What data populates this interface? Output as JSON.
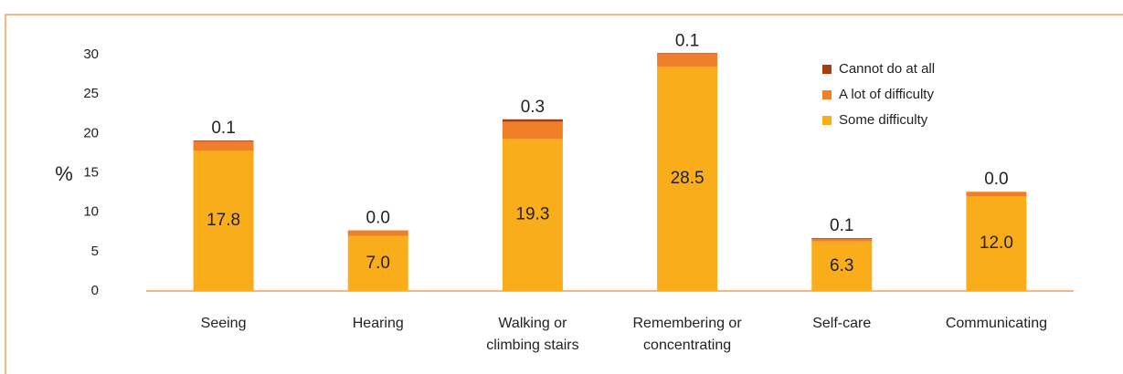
{
  "chart_data": {
    "type": "stacked_bar",
    "y_label": "%",
    "categories": [
      [
        "Seeing"
      ],
      [
        "Hearing"
      ],
      [
        "Walking or",
        "climbing stairs"
      ],
      [
        "Remembering or",
        "concentrating"
      ],
      [
        "Self-care"
      ],
      [
        "Communicating"
      ]
    ],
    "series": [
      {
        "name": "Some difficulty",
        "color": "#f9ad1b",
        "values": [
          17.8,
          7,
          19.3,
          28.5,
          6.3,
          12
        ],
        "value_labels": [
          "17.8",
          "7.0",
          "19.3",
          "28.5",
          "6.3",
          "12.0"
        ]
      },
      {
        "name": "A lot of difficulty",
        "color": "#f07f2a",
        "values": [
          1.2,
          0.7,
          2.2,
          1.6,
          0.3,
          0.6
        ]
      },
      {
        "name": "Cannot do at all",
        "color": "#a83c0e",
        "values": [
          0.1,
          0,
          0.3,
          0.1,
          0.1,
          0
        ],
        "value_labels": [
          "0.1",
          "0.0",
          "0.3",
          "0.1",
          "0.1",
          "0.0"
        ]
      }
    ],
    "ylim": [
      0,
      30
    ],
    "yticks": [
      0,
      5,
      10,
      15,
      20,
      25,
      30
    ],
    "grid": false,
    "legend": "top-right"
  }
}
